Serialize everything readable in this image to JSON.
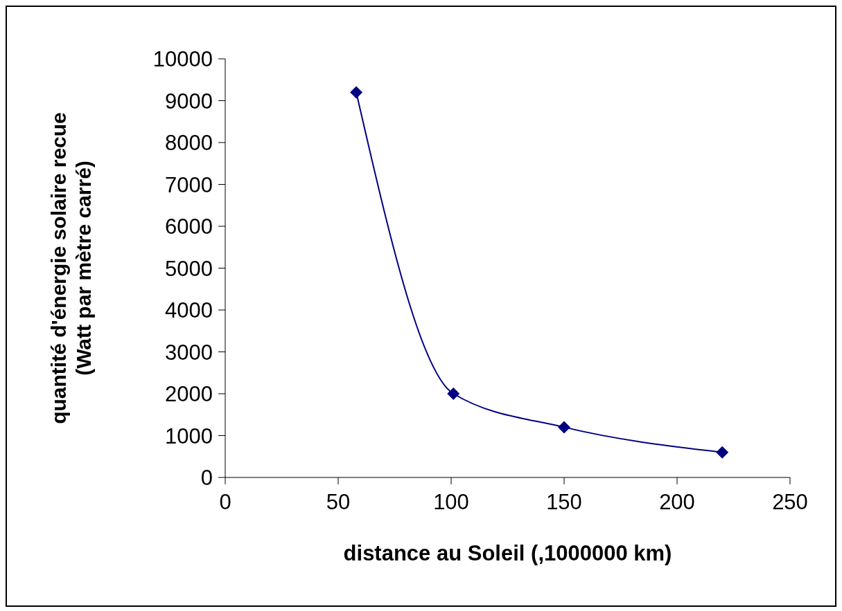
{
  "chart_data": {
    "type": "line",
    "xlabel": "distance au Soleil (,1000000 km)",
    "ylabel": "quantité d'énergie solaire recue\n(Watt par mètre carré)",
    "x": [
      58,
      101,
      150,
      220
    ],
    "series": [
      {
        "color": "#000080",
        "values": [
          9200,
          2000,
          1200,
          600
        ]
      }
    ],
    "xlim": [
      0,
      250
    ],
    "xticks": [
      0,
      50,
      100,
      150,
      200,
      250
    ],
    "ylim": [
      0,
      10000
    ],
    "yticks": [
      0,
      1000,
      2000,
      3000,
      4000,
      5000,
      6000,
      7000,
      8000,
      9000,
      10000
    ],
    "grid": false,
    "legend": false,
    "marker": "diamond",
    "line_style": "solid"
  }
}
